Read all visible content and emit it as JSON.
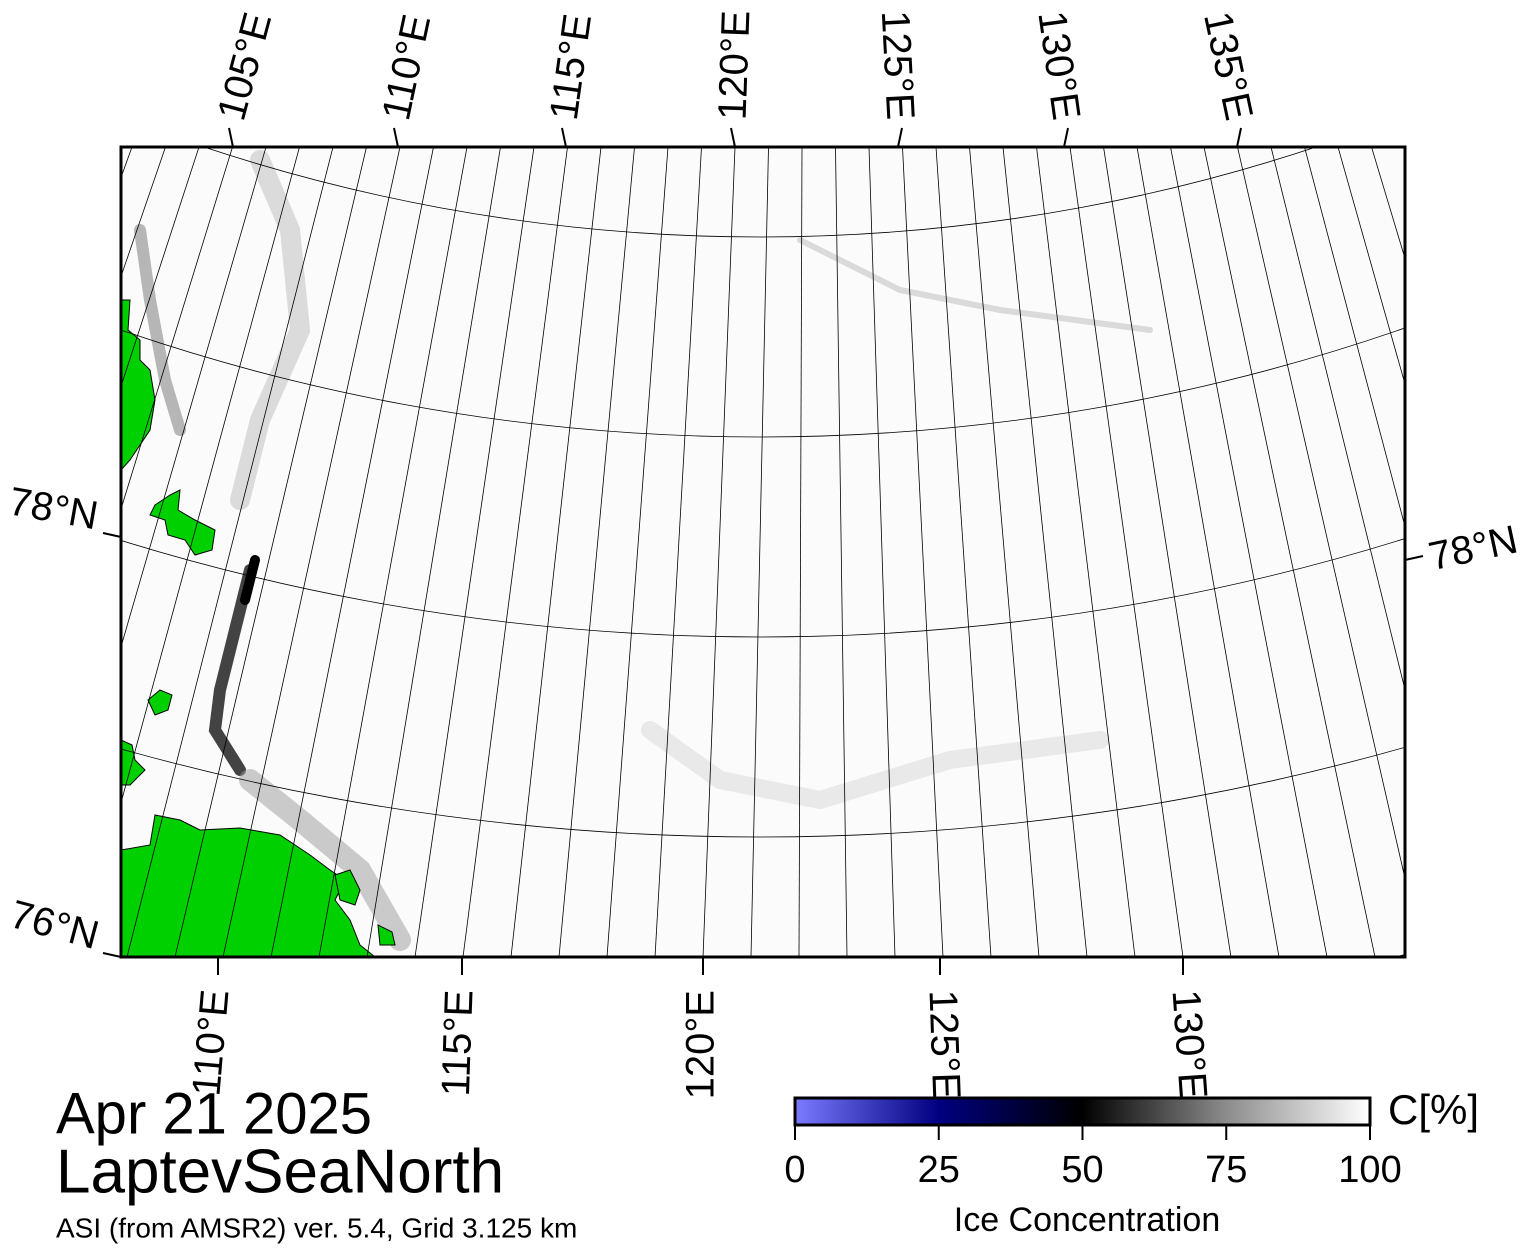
{
  "map": {
    "top_lon_labels": [
      "105°E",
      "110°E",
      "115°E",
      "120°E",
      "125°E",
      "130°E",
      "135°E"
    ],
    "bottom_lon_labels": [
      "110°E",
      "115°E",
      "120°E",
      "125°E",
      "130°E"
    ],
    "left_lat_labels": [
      "78°N",
      "76°N"
    ],
    "right_lat_labels": [
      "78°N"
    ]
  },
  "date": "Apr 21 2025",
  "region": "LaptevSeaNorth",
  "product": "ASI (from AMSR2) ver. 5.4,  Grid 3.125 km",
  "colorbar": {
    "label": "Ice Concentration",
    "unit": "C[%]",
    "range": [
      0,
      100
    ],
    "ticks": [
      0,
      25,
      50,
      75,
      100
    ]
  }
}
